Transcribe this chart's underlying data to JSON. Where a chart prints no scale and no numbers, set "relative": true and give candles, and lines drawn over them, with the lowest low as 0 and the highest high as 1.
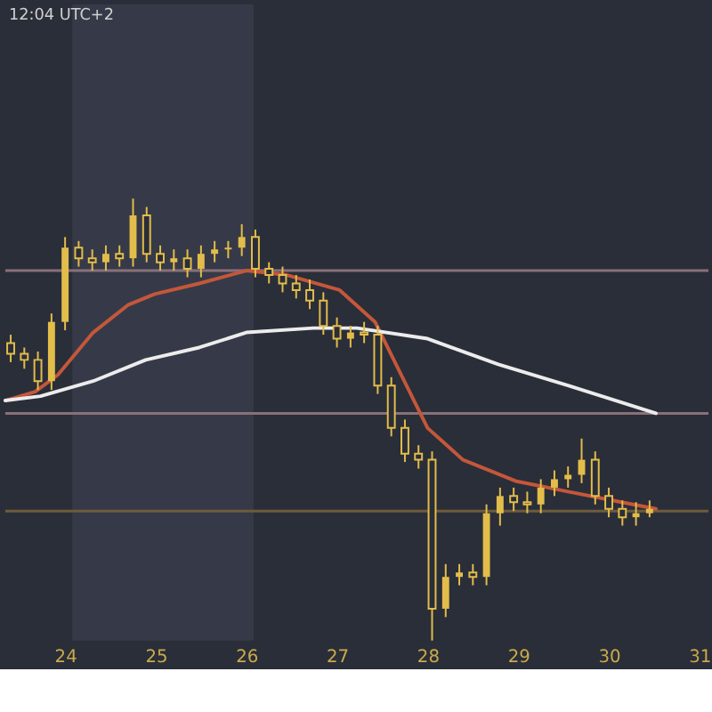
{
  "chart_data": {
    "type": "candlestick",
    "relative": true,
    "color": "#e3bd4a",
    "x": [
      23.4,
      23.55,
      23.7,
      23.85,
      24.0,
      24.15,
      24.3,
      24.45,
      24.6,
      24.75,
      24.9,
      25.05,
      25.2,
      25.35,
      25.5,
      25.65,
      25.8,
      25.95,
      26.1,
      26.25,
      26.4,
      26.55,
      26.7,
      26.85,
      27.0,
      27.15,
      27.3,
      27.45,
      27.6,
      27.75,
      27.9,
      28.05,
      28.2,
      28.35,
      28.5,
      28.65,
      28.8,
      28.95,
      29.1,
      29.25,
      29.4,
      29.55,
      29.7,
      29.85,
      30.0,
      30.15,
      30.3,
      30.45
    ],
    "ohlc": [
      [
        0.673,
        0.692,
        0.63,
        0.649
      ],
      [
        0.649,
        0.663,
        0.615,
        0.635
      ],
      [
        0.635,
        0.654,
        0.567,
        0.587
      ],
      [
        0.587,
        0.74,
        0.567,
        0.721
      ],
      [
        0.721,
        0.913,
        0.702,
        0.889
      ],
      [
        0.889,
        0.904,
        0.846,
        0.865
      ],
      [
        0.865,
        0.885,
        0.837,
        0.856
      ],
      [
        0.856,
        0.894,
        0.837,
        0.875
      ],
      [
        0.875,
        0.894,
        0.846,
        0.865
      ],
      [
        0.865,
        1.0,
        0.846,
        0.962
      ],
      [
        0.962,
        0.981,
        0.856,
        0.875
      ],
      [
        0.875,
        0.894,
        0.837,
        0.856
      ],
      [
        0.856,
        0.885,
        0.837,
        0.865
      ],
      [
        0.865,
        0.885,
        0.822,
        0.841
      ],
      [
        0.841,
        0.894,
        0.822,
        0.875
      ],
      [
        0.875,
        0.904,
        0.856,
        0.885
      ],
      [
        0.885,
        0.904,
        0.865,
        0.889
      ],
      [
        0.889,
        0.942,
        0.87,
        0.913
      ],
      [
        0.913,
        0.93,
        0.822,
        0.841
      ],
      [
        0.841,
        0.856,
        0.808,
        0.827
      ],
      [
        0.827,
        0.846,
        0.788,
        0.808
      ],
      [
        0.808,
        0.827,
        0.774,
        0.793
      ],
      [
        0.793,
        0.817,
        0.75,
        0.769
      ],
      [
        0.769,
        0.788,
        0.692,
        0.712
      ],
      [
        0.712,
        0.731,
        0.663,
        0.683
      ],
      [
        0.683,
        0.712,
        0.663,
        0.697
      ],
      [
        0.697,
        0.721,
        0.673,
        0.692
      ],
      [
        0.692,
        0.712,
        0.558,
        0.577
      ],
      [
        0.577,
        0.596,
        0.462,
        0.481
      ],
      [
        0.481,
        0.5,
        0.404,
        0.423
      ],
      [
        0.423,
        0.442,
        0.389,
        0.409
      ],
      [
        0.409,
        0.428,
        0.0,
        0.072
      ],
      [
        0.072,
        0.173,
        0.053,
        0.144
      ],
      [
        0.144,
        0.173,
        0.125,
        0.154
      ],
      [
        0.154,
        0.173,
        0.125,
        0.144
      ],
      [
        0.144,
        0.308,
        0.125,
        0.288
      ],
      [
        0.288,
        0.346,
        0.26,
        0.327
      ],
      [
        0.327,
        0.346,
        0.293,
        0.313
      ],
      [
        0.313,
        0.337,
        0.288,
        0.308
      ],
      [
        0.308,
        0.365,
        0.288,
        0.346
      ],
      [
        0.346,
        0.385,
        0.327,
        0.365
      ],
      [
        0.365,
        0.394,
        0.346,
        0.375
      ],
      [
        0.375,
        0.457,
        0.356,
        0.409
      ],
      [
        0.409,
        0.428,
        0.308,
        0.327
      ],
      [
        0.327,
        0.346,
        0.279,
        0.298
      ],
      [
        0.298,
        0.317,
        0.26,
        0.279
      ],
      [
        0.279,
        0.313,
        0.26,
        0.288
      ],
      [
        0.288,
        0.317,
        0.279,
        0.298
      ]
    ],
    "series": [
      {
        "type": "line",
        "color": "#c4573a",
        "x": [
          23.34,
          23.67,
          23.92,
          24.31,
          24.7,
          24.99,
          25.48,
          26.0,
          26.45,
          27.03,
          27.42,
          27.71,
          28.0,
          28.39,
          28.97,
          29.55,
          30.14,
          30.52
        ],
        "values": [
          0.543,
          0.563,
          0.601,
          0.697,
          0.76,
          0.784,
          0.808,
          0.837,
          0.827,
          0.793,
          0.721,
          0.601,
          0.481,
          0.409,
          0.361,
          0.337,
          0.313,
          0.298
        ]
      },
      {
        "type": "line",
        "color": "#ececec",
        "x": [
          23.34,
          23.73,
          24.31,
          24.89,
          25.48,
          26.0,
          26.74,
          27.22,
          28.0,
          28.78,
          29.55,
          30.52
        ],
        "values": [
          0.543,
          0.553,
          0.587,
          0.635,
          0.663,
          0.697,
          0.707,
          0.707,
          0.683,
          0.625,
          0.577,
          0.514
        ]
      }
    ],
    "xlim": [
      23.34,
      31.1
    ],
    "xticks": [
      24,
      25,
      26,
      27,
      28,
      29,
      30,
      31
    ],
    "ref_lines": [
      {
        "axis": "y",
        "value": 0.837,
        "color": "#8a7079"
      },
      {
        "axis": "y",
        "value": 0.514,
        "color": "#8a7079"
      },
      {
        "axis": "y",
        "value": 0.293,
        "color": "#6e5c3c"
      }
    ],
    "bands": [
      {
        "axis": "x",
        "from": 24.08,
        "to": 26.08,
        "color": "#363a48"
      }
    ],
    "annotations": [
      "12:04 UTC+2"
    ]
  }
}
